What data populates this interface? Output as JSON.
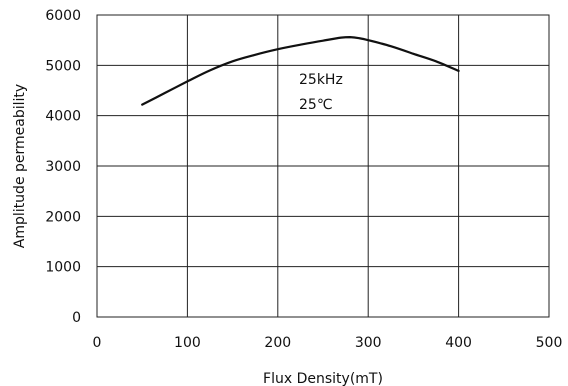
{
  "chart_data": {
    "type": "line",
    "xlabel": "Flux Density(mT)",
    "ylabel": "Amplitude permeability",
    "xlim": [
      0,
      500
    ],
    "ylim": [
      0,
      6000
    ],
    "xticks": [
      0,
      100,
      200,
      300,
      400,
      500
    ],
    "yticks": [
      0,
      1000,
      2000,
      3000,
      4000,
      5000,
      6000
    ],
    "grid": true,
    "annotations": [
      "25kHz",
      "25℃"
    ],
    "series": [
      {
        "x": [
          50,
          75,
          100,
          125,
          150,
          175,
          200,
          225,
          250,
          270,
          280,
          290,
          300,
          325,
          350,
          375,
          400
        ],
        "y": [
          4220,
          4450,
          4680,
          4900,
          5080,
          5210,
          5320,
          5410,
          5490,
          5550,
          5560,
          5540,
          5500,
          5380,
          5230,
          5080,
          4890
        ]
      }
    ]
  }
}
